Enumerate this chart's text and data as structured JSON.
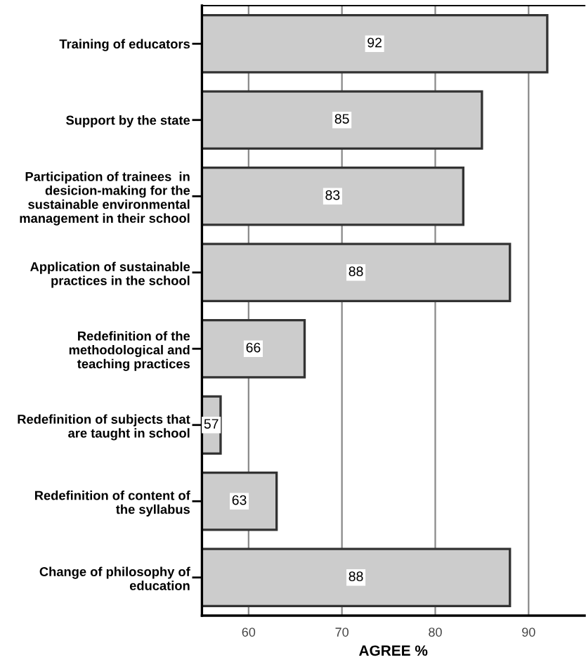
{
  "chart_data": {
    "type": "bar",
    "orientation": "horizontal",
    "xlabel": "AGREE %",
    "categories": [
      "Training of educators",
      "Support by the state",
      "Participation of trainees  in\ndesicion-making for the\nsustainable environmental\nmanagement in their school",
      "Application of sustainable\npractices in the school",
      "Redefinition of the\nmethodological and\nteaching practices",
      "Redefinition of subjects that\nare taught in school",
      "Redefinition of content of\nthe syllabus",
      "Change of philosophy of\neducation"
    ],
    "values": [
      92,
      85,
      83,
      88,
      66,
      57,
      63,
      88
    ],
    "color": "#cccccc",
    "xlim": [
      55,
      96
    ],
    "xticks": [
      60,
      70,
      80,
      90
    ],
    "grid": "x",
    "data_labels": true
  }
}
